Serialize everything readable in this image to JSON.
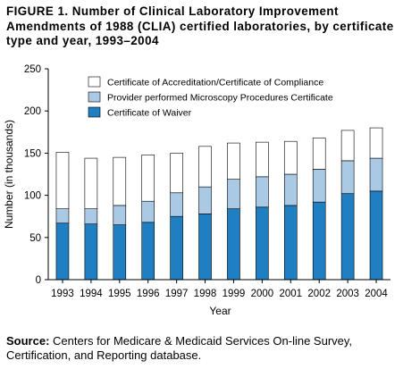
{
  "figure": {
    "title": "FIGURE 1. Number of Clinical Laboratory Improvement Amendments of 1988 (CLIA) certified laboratories, by certificate type and year, 1993–2004",
    "source_label": "Source:",
    "source_text": "Centers for Medicare & Medicaid Services On-line Survey, Certification, and Reporting database."
  },
  "chart_data": {
    "type": "bar",
    "stacked": true,
    "categories": [
      "1993",
      "1994",
      "1995",
      "1996",
      "1997",
      "1998",
      "1999",
      "2000",
      "2001",
      "2002",
      "2003",
      "2004"
    ],
    "series": [
      {
        "name": "Certificate of Waiver",
        "color": "#1f7fc1",
        "values": [
          67,
          66,
          65,
          68,
          75,
          78,
          84,
          86,
          88,
          92,
          102,
          105
        ]
      },
      {
        "name": "Provider performed Microscopy Procedures Certificate",
        "color": "#a9c9e4",
        "values": [
          17,
          18,
          23,
          25,
          28,
          32,
          35,
          36,
          37,
          39,
          39,
          39
        ]
      },
      {
        "name": "Certificate of Accreditation/Certificate of Compliance",
        "color": "#ffffff",
        "values": [
          67,
          60,
          57,
          55,
          47,
          48,
          43,
          41,
          39,
          37,
          36,
          36
        ]
      }
    ],
    "legend_order": [
      2,
      1,
      0
    ],
    "legend_position": "top-left",
    "xlabel": "Year",
    "ylabel": "Number (in thousands)",
    "ylim": [
      0,
      250
    ],
    "yticks": [
      0,
      50,
      100,
      150,
      200,
      250
    ],
    "grid": false
  }
}
